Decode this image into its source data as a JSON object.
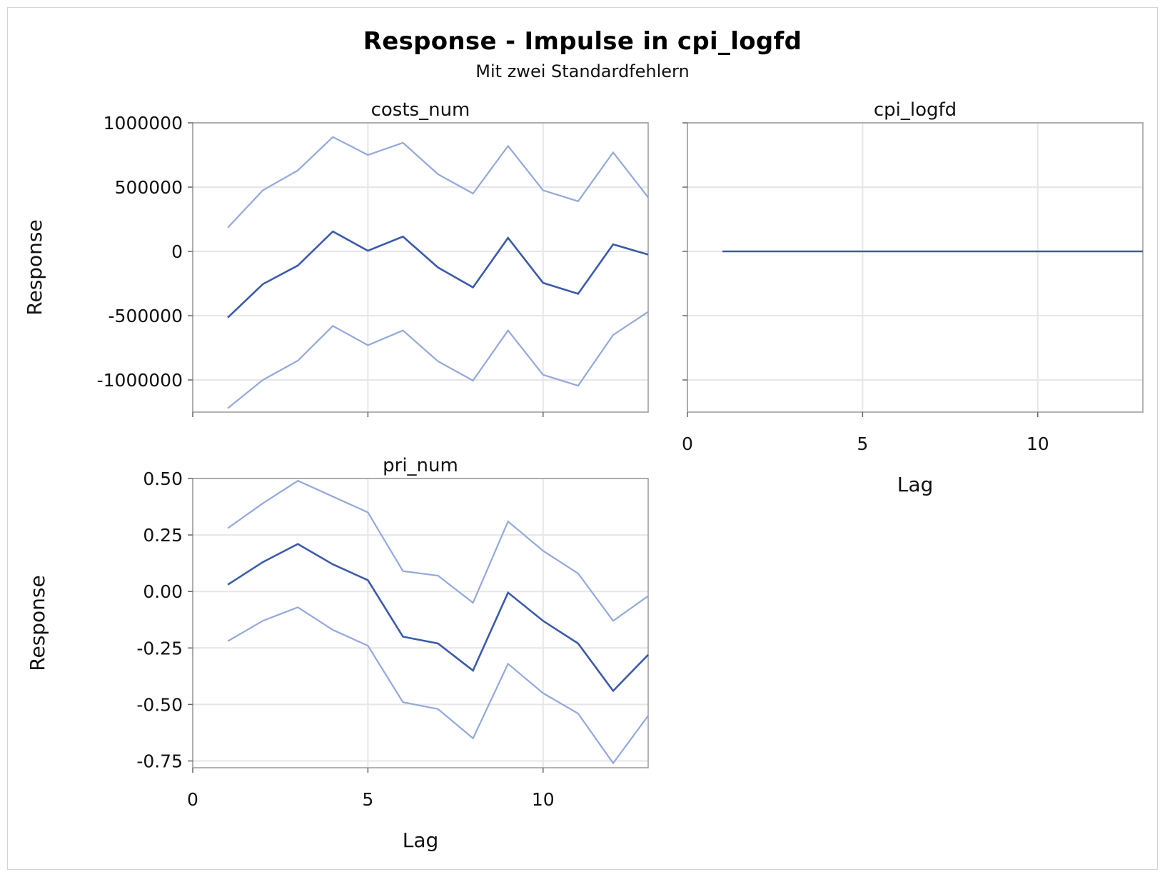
{
  "title": "Response - Impulse in cpi_logfd",
  "subtitle": "Mit zwei Standardfehlern",
  "colors": {
    "response": "#3b5ba9",
    "bands": "#94a8dc",
    "grid": "#e6e6e6",
    "frame": "#9a9a9a"
  },
  "chart_data": [
    {
      "type": "line",
      "title": "costs_num",
      "xlabel": "",
      "ylabel": "Response",
      "xlim": [
        0,
        13
      ],
      "ylim": [
        -1250000,
        1000000
      ],
      "yticks": [
        1000000,
        500000,
        0,
        -500000,
        -1000000
      ],
      "ytick_labels": [
        "1000000",
        "500000",
        "0",
        "-500000",
        "-1000000"
      ],
      "xticks": [
        0,
        5,
        10
      ],
      "xtick_labels": [],
      "grid": true,
      "x": [
        1,
        2,
        3,
        4,
        5,
        6,
        7,
        8,
        9,
        10,
        11,
        12,
        13
      ],
      "series": [
        {
          "role": "upper",
          "values": [
            185000,
            475000,
            630000,
            890000,
            750000,
            845000,
            600000,
            450000,
            820000,
            475000,
            390000,
            770000,
            420000
          ]
        },
        {
          "role": "response",
          "values": [
            -515000,
            -255000,
            -110000,
            155000,
            5000,
            115000,
            -125000,
            -280000,
            105000,
            -245000,
            -330000,
            55000,
            -25000
          ]
        },
        {
          "role": "lower",
          "values": [
            -1220000,
            -1000000,
            -850000,
            -580000,
            -730000,
            -615000,
            -855000,
            -1005000,
            -615000,
            -960000,
            -1045000,
            -650000,
            -470000
          ]
        }
      ]
    },
    {
      "type": "line",
      "title": "cpi_logfd",
      "xlabel": "Lag",
      "ylabel": "",
      "xlim": [
        0,
        13
      ],
      "ylim": [
        -1250000,
        1000000
      ],
      "yticks": [
        1000000,
        500000,
        0,
        -500000,
        -1000000
      ],
      "ytick_labels": [],
      "xticks": [
        0,
        5,
        10
      ],
      "xtick_labels": [
        "0",
        "5",
        "10"
      ],
      "grid": true,
      "x": [
        1,
        2,
        3,
        4,
        5,
        6,
        7,
        8,
        9,
        10,
        11,
        12,
        13
      ],
      "series": [
        {
          "role": "response",
          "values": [
            0,
            0,
            0,
            0,
            0,
            0,
            0,
            0,
            0,
            0,
            0,
            0,
            0
          ]
        }
      ]
    },
    {
      "type": "line",
      "title": "pri_num",
      "xlabel": "Lag",
      "ylabel": "Response",
      "xlim": [
        0,
        13
      ],
      "ylim": [
        -0.78,
        0.5
      ],
      "yticks": [
        0.5,
        0.25,
        0,
        -0.25,
        -0.5,
        -0.75
      ],
      "ytick_labels": [
        "0.50",
        "0.25",
        "0.00",
        "-0.25",
        "-0.50",
        "-0.75"
      ],
      "xticks": [
        0,
        5,
        10
      ],
      "xtick_labels": [
        "0",
        "5",
        "10"
      ],
      "grid": true,
      "x": [
        1,
        2,
        3,
        4,
        5,
        6,
        7,
        8,
        9,
        10,
        11,
        12,
        13
      ],
      "series": [
        {
          "role": "upper",
          "values": [
            0.28,
            0.39,
            0.49,
            0.42,
            0.35,
            0.09,
            0.07,
            -0.05,
            0.31,
            0.18,
            0.08,
            -0.13,
            -0.02
          ]
        },
        {
          "role": "response",
          "values": [
            0.03,
            0.13,
            0.21,
            0.12,
            0.05,
            -0.2,
            -0.23,
            -0.35,
            -0.005,
            -0.13,
            -0.23,
            -0.44,
            -0.28
          ]
        },
        {
          "role": "lower",
          "values": [
            -0.22,
            -0.13,
            -0.07,
            -0.17,
            -0.24,
            -0.49,
            -0.52,
            -0.65,
            -0.32,
            -0.45,
            -0.54,
            -0.76,
            -0.55
          ]
        }
      ]
    }
  ]
}
